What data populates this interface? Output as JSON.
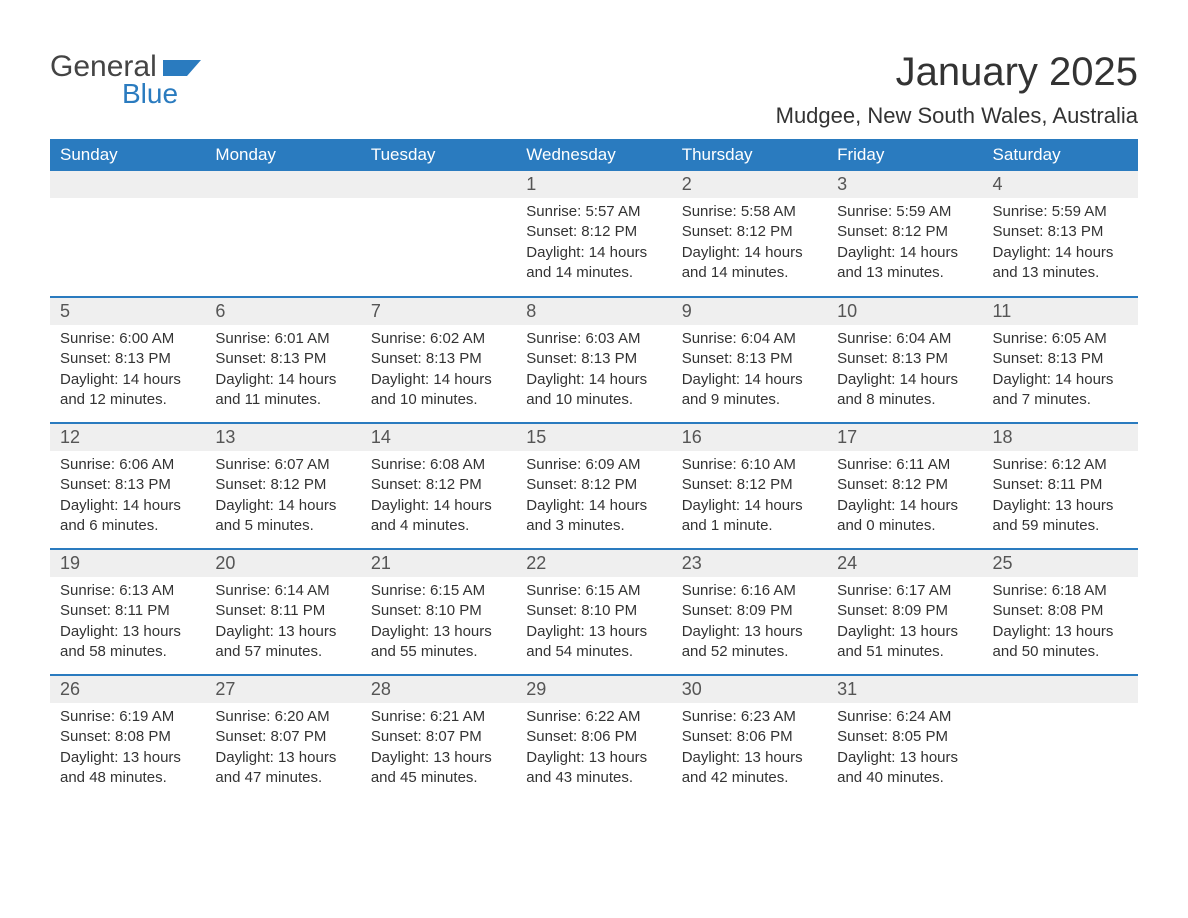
{
  "logo": {
    "text1": "General",
    "text2": "Blue"
  },
  "title": "January 2025",
  "location": "Mudgee, New South Wales, Australia",
  "styling": {
    "header_bg": "#2a7bbf",
    "header_text": "#ffffff",
    "daynum_bg": "#efefef",
    "daynum_text": "#555555",
    "body_text": "#333333",
    "row_divider": "#2a7bbf",
    "background": "#ffffff",
    "title_fontsize": 40,
    "location_fontsize": 22,
    "dayheader_fontsize": 17,
    "daynum_fontsize": 18,
    "content_fontsize": 15
  },
  "day_headers": [
    "Sunday",
    "Monday",
    "Tuesday",
    "Wednesday",
    "Thursday",
    "Friday",
    "Saturday"
  ],
  "weeks": [
    [
      null,
      null,
      null,
      {
        "n": "1",
        "sunrise": "Sunrise: 5:57 AM",
        "sunset": "Sunset: 8:12 PM",
        "daylight": "Daylight: 14 hours and 14 minutes."
      },
      {
        "n": "2",
        "sunrise": "Sunrise: 5:58 AM",
        "sunset": "Sunset: 8:12 PM",
        "daylight": "Daylight: 14 hours and 14 minutes."
      },
      {
        "n": "3",
        "sunrise": "Sunrise: 5:59 AM",
        "sunset": "Sunset: 8:12 PM",
        "daylight": "Daylight: 14 hours and 13 minutes."
      },
      {
        "n": "4",
        "sunrise": "Sunrise: 5:59 AM",
        "sunset": "Sunset: 8:13 PM",
        "daylight": "Daylight: 14 hours and 13 minutes."
      }
    ],
    [
      {
        "n": "5",
        "sunrise": "Sunrise: 6:00 AM",
        "sunset": "Sunset: 8:13 PM",
        "daylight": "Daylight: 14 hours and 12 minutes."
      },
      {
        "n": "6",
        "sunrise": "Sunrise: 6:01 AM",
        "sunset": "Sunset: 8:13 PM",
        "daylight": "Daylight: 14 hours and 11 minutes."
      },
      {
        "n": "7",
        "sunrise": "Sunrise: 6:02 AM",
        "sunset": "Sunset: 8:13 PM",
        "daylight": "Daylight: 14 hours and 10 minutes."
      },
      {
        "n": "8",
        "sunrise": "Sunrise: 6:03 AM",
        "sunset": "Sunset: 8:13 PM",
        "daylight": "Daylight: 14 hours and 10 minutes."
      },
      {
        "n": "9",
        "sunrise": "Sunrise: 6:04 AM",
        "sunset": "Sunset: 8:13 PM",
        "daylight": "Daylight: 14 hours and 9 minutes."
      },
      {
        "n": "10",
        "sunrise": "Sunrise: 6:04 AM",
        "sunset": "Sunset: 8:13 PM",
        "daylight": "Daylight: 14 hours and 8 minutes."
      },
      {
        "n": "11",
        "sunrise": "Sunrise: 6:05 AM",
        "sunset": "Sunset: 8:13 PM",
        "daylight": "Daylight: 14 hours and 7 minutes."
      }
    ],
    [
      {
        "n": "12",
        "sunrise": "Sunrise: 6:06 AM",
        "sunset": "Sunset: 8:13 PM",
        "daylight": "Daylight: 14 hours and 6 minutes."
      },
      {
        "n": "13",
        "sunrise": "Sunrise: 6:07 AM",
        "sunset": "Sunset: 8:12 PM",
        "daylight": "Daylight: 14 hours and 5 minutes."
      },
      {
        "n": "14",
        "sunrise": "Sunrise: 6:08 AM",
        "sunset": "Sunset: 8:12 PM",
        "daylight": "Daylight: 14 hours and 4 minutes."
      },
      {
        "n": "15",
        "sunrise": "Sunrise: 6:09 AM",
        "sunset": "Sunset: 8:12 PM",
        "daylight": "Daylight: 14 hours and 3 minutes."
      },
      {
        "n": "16",
        "sunrise": "Sunrise: 6:10 AM",
        "sunset": "Sunset: 8:12 PM",
        "daylight": "Daylight: 14 hours and 1 minute."
      },
      {
        "n": "17",
        "sunrise": "Sunrise: 6:11 AM",
        "sunset": "Sunset: 8:12 PM",
        "daylight": "Daylight: 14 hours and 0 minutes."
      },
      {
        "n": "18",
        "sunrise": "Sunrise: 6:12 AM",
        "sunset": "Sunset: 8:11 PM",
        "daylight": "Daylight: 13 hours and 59 minutes."
      }
    ],
    [
      {
        "n": "19",
        "sunrise": "Sunrise: 6:13 AM",
        "sunset": "Sunset: 8:11 PM",
        "daylight": "Daylight: 13 hours and 58 minutes."
      },
      {
        "n": "20",
        "sunrise": "Sunrise: 6:14 AM",
        "sunset": "Sunset: 8:11 PM",
        "daylight": "Daylight: 13 hours and 57 minutes."
      },
      {
        "n": "21",
        "sunrise": "Sunrise: 6:15 AM",
        "sunset": "Sunset: 8:10 PM",
        "daylight": "Daylight: 13 hours and 55 minutes."
      },
      {
        "n": "22",
        "sunrise": "Sunrise: 6:15 AM",
        "sunset": "Sunset: 8:10 PM",
        "daylight": "Daylight: 13 hours and 54 minutes."
      },
      {
        "n": "23",
        "sunrise": "Sunrise: 6:16 AM",
        "sunset": "Sunset: 8:09 PM",
        "daylight": "Daylight: 13 hours and 52 minutes."
      },
      {
        "n": "24",
        "sunrise": "Sunrise: 6:17 AM",
        "sunset": "Sunset: 8:09 PM",
        "daylight": "Daylight: 13 hours and 51 minutes."
      },
      {
        "n": "25",
        "sunrise": "Sunrise: 6:18 AM",
        "sunset": "Sunset: 8:08 PM",
        "daylight": "Daylight: 13 hours and 50 minutes."
      }
    ],
    [
      {
        "n": "26",
        "sunrise": "Sunrise: 6:19 AM",
        "sunset": "Sunset: 8:08 PM",
        "daylight": "Daylight: 13 hours and 48 minutes."
      },
      {
        "n": "27",
        "sunrise": "Sunrise: 6:20 AM",
        "sunset": "Sunset: 8:07 PM",
        "daylight": "Daylight: 13 hours and 47 minutes."
      },
      {
        "n": "28",
        "sunrise": "Sunrise: 6:21 AM",
        "sunset": "Sunset: 8:07 PM",
        "daylight": "Daylight: 13 hours and 45 minutes."
      },
      {
        "n": "29",
        "sunrise": "Sunrise: 6:22 AM",
        "sunset": "Sunset: 8:06 PM",
        "daylight": "Daylight: 13 hours and 43 minutes."
      },
      {
        "n": "30",
        "sunrise": "Sunrise: 6:23 AM",
        "sunset": "Sunset: 8:06 PM",
        "daylight": "Daylight: 13 hours and 42 minutes."
      },
      {
        "n": "31",
        "sunrise": "Sunrise: 6:24 AM",
        "sunset": "Sunset: 8:05 PM",
        "daylight": "Daylight: 13 hours and 40 minutes."
      },
      null
    ]
  ]
}
